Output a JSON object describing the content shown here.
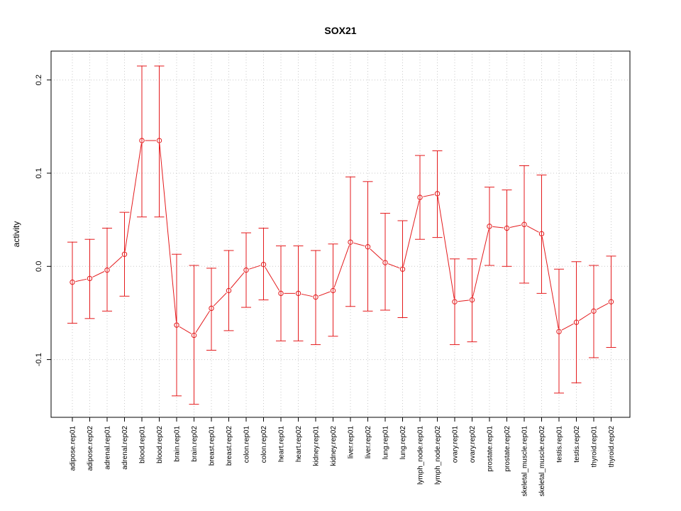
{
  "chart_data": {
    "type": "line",
    "title": "SOX21",
    "xlabel": "",
    "ylabel": "activity",
    "ylim": [
      -0.162,
      0.231
    ],
    "yticks": [
      -0.1,
      0.0,
      0.1,
      0.2
    ],
    "ytick_labels": [
      "-0.1",
      "0.0",
      "0.1",
      "0.2"
    ],
    "grid": true,
    "series_color": "#e41a1c",
    "grid_color": "#c8c8c8",
    "categories": [
      "adipose.rep01",
      "adipose.rep02",
      "adrenal.rep01",
      "adrenal.rep02",
      "blood.rep01",
      "blood.rep02",
      "brain.rep01",
      "brain.rep02",
      "breast.rep01",
      "breast.rep02",
      "colon.rep01",
      "colon.rep02",
      "heart.rep01",
      "heart.rep02",
      "kidney.rep01",
      "kidney.rep02",
      "liver.rep01",
      "liver.rep02",
      "lung.rep01",
      "lung.rep02",
      "lymph_node.rep01",
      "lymph_node.rep02",
      "ovary.rep01",
      "ovary.rep02",
      "prostate.rep01",
      "prostate.rep02",
      "skeletal_muscle.rep01",
      "skeletal_muscle.rep02",
      "testis.rep01",
      "testis.rep02",
      "thyroid.rep01",
      "thyroid.rep02"
    ],
    "values": [
      -0.017,
      -0.013,
      -0.004,
      0.013,
      0.135,
      0.135,
      -0.063,
      -0.074,
      -0.045,
      -0.026,
      -0.004,
      0.002,
      -0.029,
      -0.029,
      -0.033,
      -0.026,
      0.026,
      0.021,
      0.004,
      -0.003,
      0.074,
      0.078,
      -0.038,
      -0.036,
      0.043,
      0.041,
      0.045,
      0.035,
      -0.07,
      -0.06,
      -0.048,
      -0.038
    ],
    "upper": [
      0.026,
      0.029,
      0.041,
      0.058,
      0.215,
      0.215,
      0.013,
      0.001,
      -0.002,
      0.017,
      0.036,
      0.041,
      0.022,
      0.022,
      0.017,
      0.024,
      0.096,
      0.091,
      0.057,
      0.049,
      0.119,
      0.124,
      0.008,
      0.008,
      0.085,
      0.082,
      0.108,
      0.098,
      -0.003,
      0.005,
      0.001,
      0.011
    ],
    "lower": [
      -0.061,
      -0.056,
      -0.048,
      -0.032,
      0.053,
      0.053,
      -0.139,
      -0.148,
      -0.09,
      -0.069,
      -0.044,
      -0.036,
      -0.08,
      -0.08,
      -0.084,
      -0.075,
      -0.043,
      -0.048,
      -0.047,
      -0.055,
      0.029,
      0.031,
      -0.084,
      -0.081,
      0.001,
      0.0,
      -0.018,
      -0.029,
      -0.136,
      -0.125,
      -0.098,
      -0.087
    ]
  }
}
